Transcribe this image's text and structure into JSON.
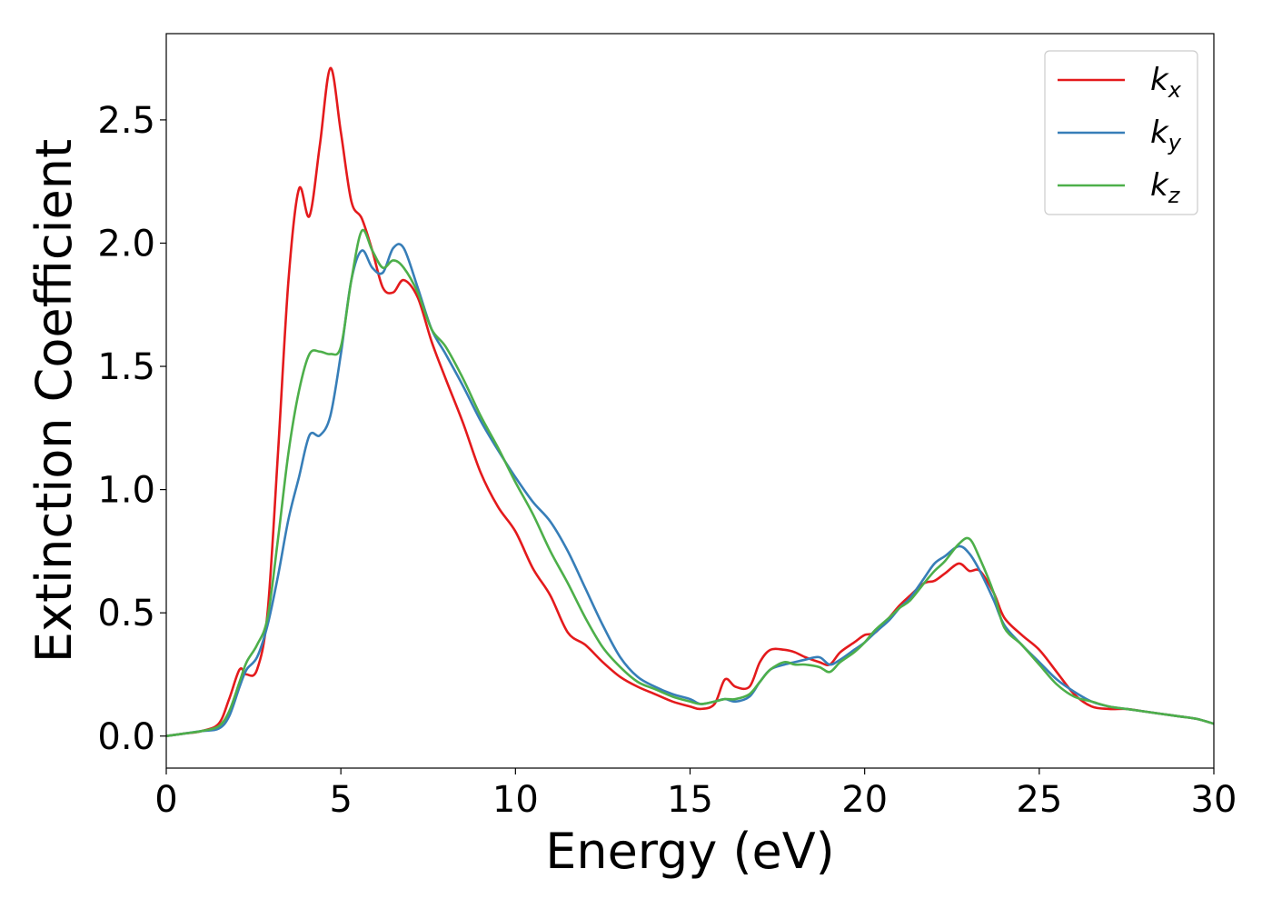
{
  "chart_data": {
    "type": "line",
    "title": "",
    "xlabel": "Energy (eV)",
    "ylabel": "Extinction Coefficient",
    "xlim": [
      0,
      30
    ],
    "ylim": [
      -0.13,
      2.85
    ],
    "xticks": [
      0,
      5,
      10,
      15,
      20,
      25,
      30
    ],
    "yticks": [
      0.0,
      0.5,
      1.0,
      1.5,
      2.0,
      2.5
    ],
    "grid": false,
    "legend_position": "top-right",
    "series": [
      {
        "name": "k_x",
        "label_main": "k",
        "label_sub": "x",
        "color": "#e41a1c",
        "x": [
          0,
          0.5,
          1.0,
          1.5,
          1.8,
          2.1,
          2.3,
          2.6,
          2.9,
          3.2,
          3.5,
          3.8,
          4.1,
          4.4,
          4.7,
          5.0,
          5.3,
          5.6,
          5.9,
          6.2,
          6.5,
          6.8,
          7.2,
          7.6,
          8.0,
          8.5,
          9.0,
          9.5,
          10.0,
          10.5,
          11.0,
          11.5,
          12.0,
          12.5,
          13.0,
          13.5,
          14.0,
          14.5,
          15.0,
          15.3,
          15.7,
          16.0,
          16.3,
          16.7,
          17.0,
          17.3,
          17.7,
          18.0,
          18.3,
          18.7,
          19.0,
          19.3,
          19.7,
          20.0,
          20.3,
          20.7,
          21.0,
          21.3,
          21.7,
          22.0,
          22.3,
          22.7,
          23.0,
          23.3,
          23.7,
          24.0,
          24.5,
          25.0,
          25.5,
          26.0,
          26.5,
          27.0,
          27.5,
          28.0,
          28.5,
          29.0,
          29.5,
          30.0
        ],
        "y": [
          0.0,
          0.01,
          0.02,
          0.05,
          0.15,
          0.27,
          0.25,
          0.27,
          0.5,
          1.15,
          1.85,
          2.22,
          2.11,
          2.4,
          2.71,
          2.45,
          2.17,
          2.1,
          1.97,
          1.82,
          1.8,
          1.85,
          1.78,
          1.6,
          1.45,
          1.27,
          1.07,
          0.93,
          0.83,
          0.68,
          0.57,
          0.42,
          0.37,
          0.3,
          0.24,
          0.2,
          0.17,
          0.14,
          0.12,
          0.11,
          0.13,
          0.23,
          0.2,
          0.2,
          0.3,
          0.35,
          0.35,
          0.34,
          0.32,
          0.3,
          0.29,
          0.34,
          0.38,
          0.41,
          0.42,
          0.48,
          0.53,
          0.57,
          0.62,
          0.63,
          0.66,
          0.7,
          0.67,
          0.67,
          0.58,
          0.48,
          0.41,
          0.35,
          0.26,
          0.17,
          0.12,
          0.11,
          0.11,
          0.1,
          0.09,
          0.08,
          0.07,
          0.05
        ]
      },
      {
        "name": "k_y",
        "label_main": "k",
        "label_sub": "y",
        "color": "#377eb8",
        "x": [
          0,
          0.5,
          1.0,
          1.5,
          1.8,
          2.1,
          2.3,
          2.6,
          2.9,
          3.2,
          3.5,
          3.8,
          4.1,
          4.4,
          4.7,
          5.0,
          5.3,
          5.6,
          5.9,
          6.2,
          6.5,
          6.8,
          7.2,
          7.6,
          8.0,
          8.5,
          9.0,
          9.5,
          10.0,
          10.5,
          11.0,
          11.5,
          12.0,
          12.5,
          13.0,
          13.5,
          14.0,
          14.5,
          15.0,
          15.3,
          15.7,
          16.0,
          16.3,
          16.7,
          17.0,
          17.3,
          17.7,
          18.0,
          18.3,
          18.7,
          19.0,
          19.3,
          19.7,
          20.0,
          20.3,
          20.7,
          21.0,
          21.3,
          21.7,
          22.0,
          22.3,
          22.7,
          23.0,
          23.3,
          23.7,
          24.0,
          24.5,
          25.0,
          25.5,
          26.0,
          26.5,
          27.0,
          27.5,
          28.0,
          28.5,
          29.0,
          29.5,
          30.0
        ],
        "y": [
          0.0,
          0.01,
          0.02,
          0.03,
          0.08,
          0.2,
          0.27,
          0.32,
          0.45,
          0.65,
          0.88,
          1.05,
          1.22,
          1.22,
          1.3,
          1.55,
          1.85,
          1.97,
          1.9,
          1.88,
          1.98,
          1.98,
          1.82,
          1.65,
          1.55,
          1.42,
          1.28,
          1.16,
          1.05,
          0.95,
          0.87,
          0.75,
          0.6,
          0.45,
          0.32,
          0.24,
          0.2,
          0.17,
          0.15,
          0.13,
          0.14,
          0.15,
          0.14,
          0.16,
          0.22,
          0.27,
          0.29,
          0.3,
          0.31,
          0.32,
          0.29,
          0.31,
          0.35,
          0.38,
          0.42,
          0.47,
          0.52,
          0.56,
          0.64,
          0.7,
          0.73,
          0.77,
          0.74,
          0.67,
          0.55,
          0.45,
          0.37,
          0.3,
          0.23,
          0.18,
          0.14,
          0.12,
          0.11,
          0.1,
          0.09,
          0.08,
          0.07,
          0.05
        ]
      },
      {
        "name": "k_z",
        "label_main": "k",
        "label_sub": "z",
        "color": "#4daf4a",
        "x": [
          0,
          0.5,
          1.0,
          1.5,
          1.8,
          2.1,
          2.3,
          2.6,
          2.9,
          3.2,
          3.5,
          3.8,
          4.1,
          4.4,
          4.7,
          5.0,
          5.3,
          5.6,
          5.9,
          6.2,
          6.5,
          6.8,
          7.2,
          7.6,
          8.0,
          8.5,
          9.0,
          9.5,
          10.0,
          10.5,
          11.0,
          11.5,
          12.0,
          12.5,
          13.0,
          13.5,
          14.0,
          14.5,
          15.0,
          15.3,
          15.7,
          16.0,
          16.3,
          16.7,
          17.0,
          17.3,
          17.7,
          18.0,
          18.3,
          18.7,
          19.0,
          19.3,
          19.7,
          20.0,
          20.3,
          20.7,
          21.0,
          21.3,
          21.7,
          22.0,
          22.3,
          22.7,
          23.0,
          23.3,
          23.7,
          24.0,
          24.5,
          25.0,
          25.5,
          26.0,
          26.5,
          27.0,
          27.5,
          28.0,
          28.5,
          29.0,
          29.5,
          30.0
        ],
        "y": [
          0.0,
          0.01,
          0.02,
          0.04,
          0.1,
          0.22,
          0.3,
          0.37,
          0.48,
          0.8,
          1.15,
          1.4,
          1.55,
          1.56,
          1.55,
          1.58,
          1.85,
          2.05,
          1.97,
          1.9,
          1.93,
          1.9,
          1.8,
          1.65,
          1.58,
          1.45,
          1.3,
          1.17,
          1.03,
          0.9,
          0.75,
          0.62,
          0.48,
          0.36,
          0.28,
          0.22,
          0.19,
          0.16,
          0.14,
          0.13,
          0.14,
          0.15,
          0.15,
          0.17,
          0.22,
          0.27,
          0.3,
          0.29,
          0.29,
          0.28,
          0.26,
          0.3,
          0.34,
          0.38,
          0.43,
          0.48,
          0.52,
          0.55,
          0.62,
          0.67,
          0.71,
          0.78,
          0.8,
          0.72,
          0.58,
          0.44,
          0.37,
          0.29,
          0.21,
          0.16,
          0.14,
          0.12,
          0.11,
          0.1,
          0.09,
          0.08,
          0.07,
          0.05
        ]
      }
    ]
  }
}
